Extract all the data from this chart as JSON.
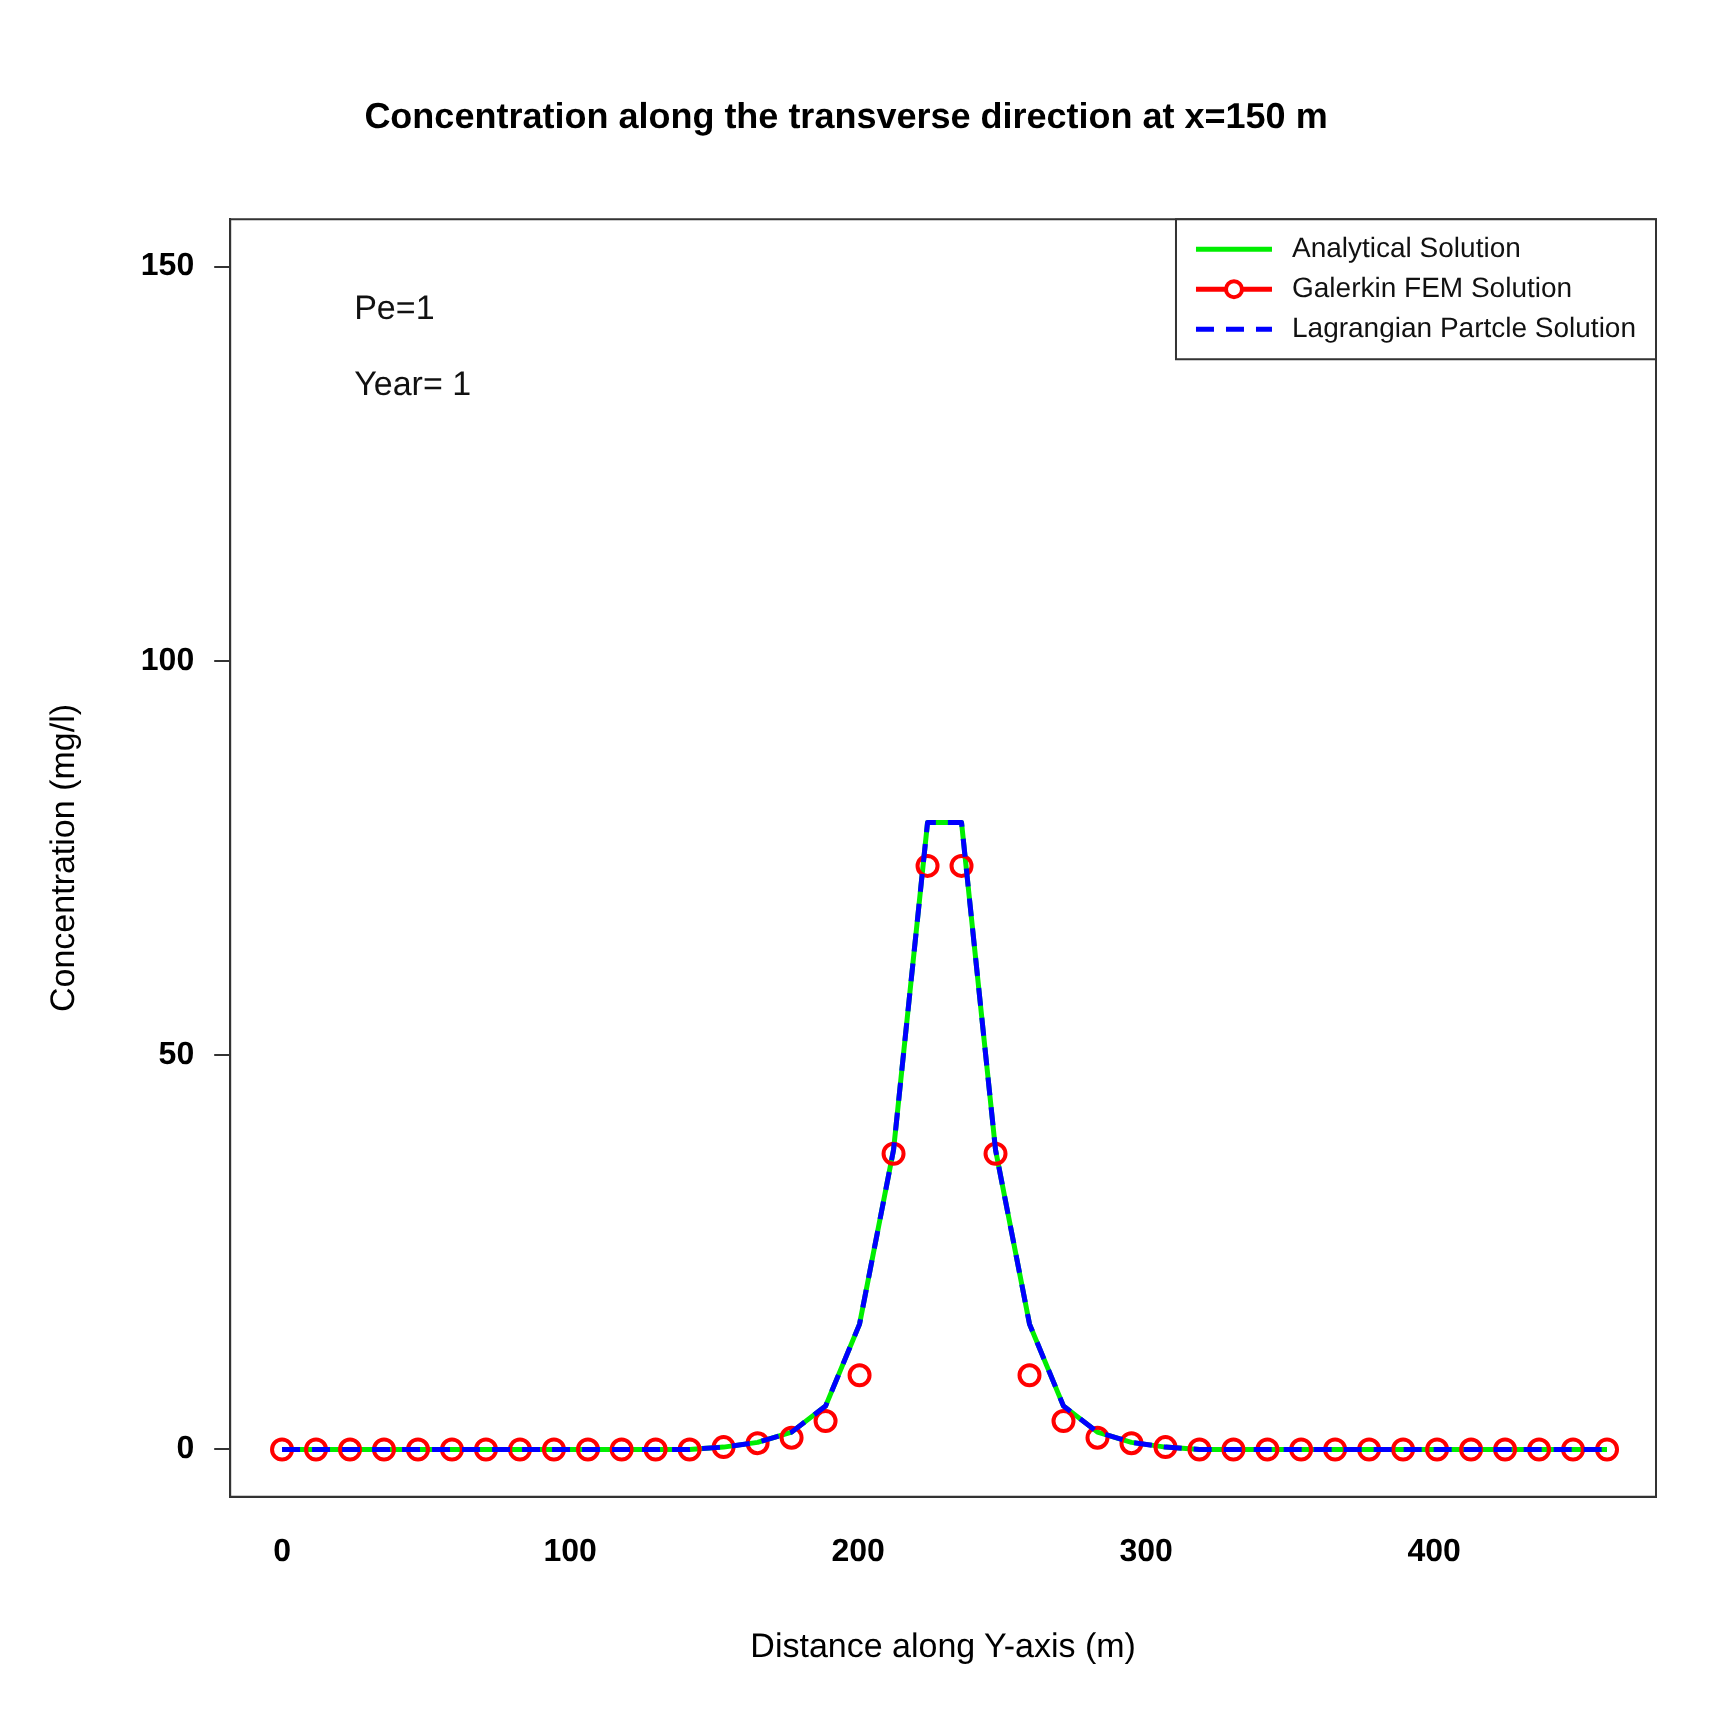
{
  "chart_data": {
    "type": "line",
    "title": "Concentration along the transverse direction at x=150 m",
    "xlabel": "Distance along Y-axis (m)",
    "ylabel": "Concentration (mg/l)",
    "annotations": [
      "Pe=1",
      "Year= 1"
    ],
    "x": [
      0,
      11.8,
      23.6,
      35.4,
      47.2,
      59.0,
      70.8,
      82.6,
      94.4,
      106.2,
      117.9,
      129.7,
      141.5,
      153.3,
      165.1,
      176.9,
      188.7,
      200.5,
      212.3,
      224.1,
      235.9,
      247.7,
      259.5,
      271.3,
      283.1,
      294.9,
      306.7,
      318.5,
      330.3,
      342.1,
      353.8,
      365.6,
      377.4,
      389.2,
      401.0,
      412.8,
      424.6,
      436.4,
      448.2,
      460
    ],
    "series": [
      {
        "name": "Analytical Solution",
        "color": "#00ee00",
        "line_style": "solid",
        "marker": "none",
        "values": [
          0,
          0,
          0,
          0,
          0,
          0,
          0,
          0,
          0,
          0,
          0,
          0,
          0,
          0.3,
          0.9,
          2.2,
          5.5,
          15.9,
          38,
          79.5,
          79.5,
          38,
          15.9,
          5.5,
          2.2,
          0.9,
          0.3,
          0,
          0,
          0,
          0,
          0,
          0,
          0,
          0,
          0,
          0,
          0,
          0,
          0
        ]
      },
      {
        "name": "Galerkin FEM Solution",
        "color": "#ff0000",
        "type": "scatter",
        "marker": "circle",
        "values": [
          0,
          0,
          0,
          0,
          0,
          0,
          0,
          0,
          0,
          0,
          0,
          0,
          0,
          0.3,
          0.8,
          1.5,
          3.6,
          9.4,
          37.5,
          74,
          74,
          37.5,
          9.4,
          3.6,
          1.5,
          0.8,
          0.3,
          0,
          0,
          0,
          0,
          0,
          0,
          0,
          0,
          0,
          0,
          0,
          0,
          0
        ]
      },
      {
        "name": "Lagrangian Partcle Solution",
        "color": "#0000ff",
        "line_style": "dashed",
        "marker": "none",
        "values": [
          0,
          0,
          0,
          0,
          0,
          0,
          0,
          0,
          0,
          0,
          0,
          0,
          0,
          0.3,
          0.9,
          2.2,
          5.5,
          15.9,
          38,
          79.5,
          79.5,
          38,
          15.9,
          5.5,
          2.2,
          0.9,
          0.3,
          0,
          0,
          0,
          0,
          0,
          0,
          0,
          0,
          0,
          0,
          0,
          0,
          0
        ]
      }
    ],
    "xlim": [
      -18,
      477
    ],
    "xticks": [
      0,
      100,
      200,
      300,
      400
    ],
    "ylim": [
      -6,
      156
    ],
    "yticks": [
      0,
      50,
      100,
      150
    ],
    "grid": false,
    "legend": "top right"
  }
}
